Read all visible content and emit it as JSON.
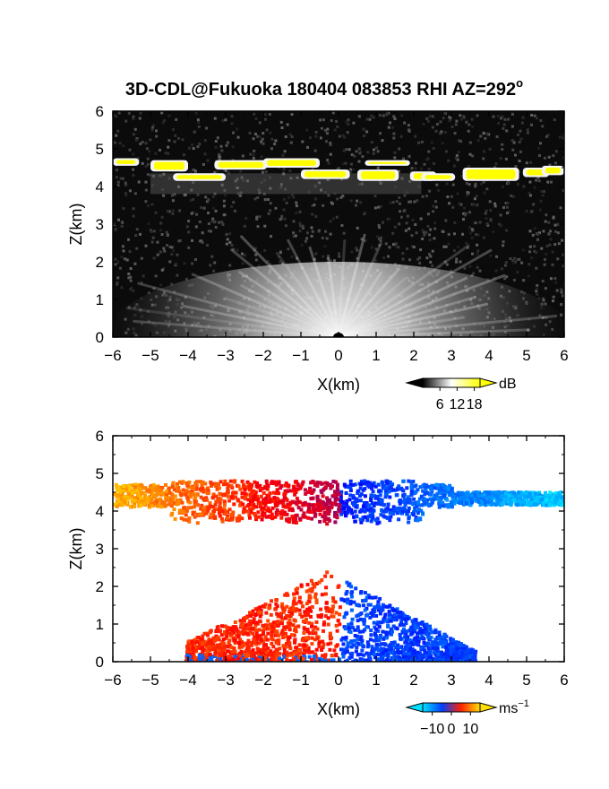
{
  "title": "3D-CDL@Fukuoka 180404 083853 RHI AZ=292",
  "title_suffix": "o",
  "chart_data": [
    {
      "type": "heatmap",
      "name": "snr",
      "xlabel": "X(km)",
      "ylabel": "Z(km)",
      "xlim": [
        -6,
        6
      ],
      "ylim": [
        0,
        6
      ],
      "xticks": [
        -6,
        -5,
        -4,
        -3,
        -2,
        -1,
        0,
        1,
        2,
        3,
        4,
        5,
        6
      ],
      "yticks": [
        0,
        1,
        2,
        3,
        4,
        5,
        6
      ],
      "colorbar": {
        "unit": "dB",
        "ticks": [
          "6",
          "12",
          "18"
        ],
        "tick_values": [
          6,
          12,
          18
        ],
        "range": [
          0,
          20
        ],
        "colors": [
          "#000000",
          "#ffffff",
          "#ffff00"
        ]
      },
      "features": {
        "cloud_layer_base_km": 4.1,
        "cloud_layer_top_km": 4.9,
        "ground_return_max_height_km": 2.0
      }
    },
    {
      "type": "heatmap",
      "name": "doppler_velocity",
      "xlabel": "X(km)",
      "ylabel": "Z(km)",
      "xlim": [
        -6,
        6
      ],
      "ylim": [
        0,
        6
      ],
      "xticks": [
        -6,
        -5,
        -4,
        -3,
        -2,
        -1,
        0,
        1,
        2,
        3,
        4,
        5,
        6
      ],
      "yticks": [
        0,
        1,
        2,
        3,
        4,
        5,
        6
      ],
      "colorbar": {
        "unit": "ms",
        "unit_exp": "−1",
        "ticks": [
          "−10",
          "0",
          "10"
        ],
        "tick_values": [
          -10,
          0,
          10
        ],
        "range": [
          -15,
          15
        ],
        "colors": [
          "#00ffff",
          "#0000ff",
          "#ff0000",
          "#ffff00"
        ]
      },
      "features": {
        "cloud_layer_base_km": 4.1,
        "cloud_layer_top_km": 4.9,
        "ground_return_max_height_km": 2.6
      }
    }
  ]
}
